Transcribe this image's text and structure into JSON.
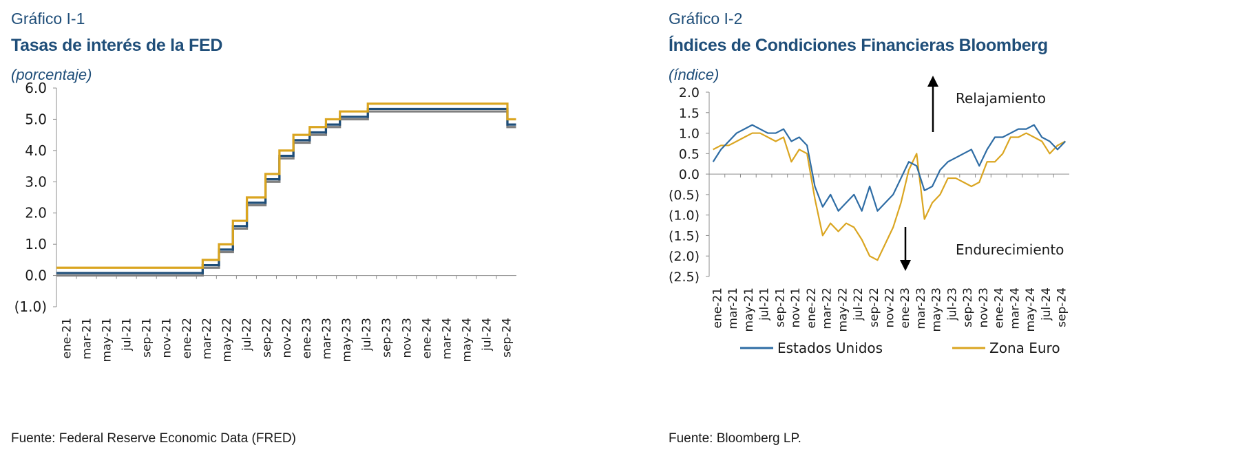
{
  "left": {
    "label": "Gráfico I-1",
    "title": "Tasas de interés de la FED",
    "unit": "(porcentaje)",
    "source": "Fuente: Federal Reserve Economic Data (FRED)"
  },
  "right": {
    "label": "Gráfico I-2",
    "title": "Índices de Condiciones Financieras Bloomberg",
    "unit": "(índice)",
    "source": "Fuente: Bloomberg LP.",
    "annotation_up": "Relajamiento",
    "annotation_down": "Endurecimiento",
    "legend": [
      "Estados Unidos",
      "Zona Euro"
    ]
  },
  "chart_data": [
    {
      "type": "line",
      "title": "Tasas de interés de la FED",
      "ylabel": "(porcentaje)",
      "ylim": [
        -1.0,
        6.0
      ],
      "yticks": [
        "(1.0)",
        "0.0",
        "1.0",
        "2.0",
        "3.0",
        "4.0",
        "5.0",
        "6.0"
      ],
      "xticks": [
        "ene-21",
        "mar-21",
        "may-21",
        "jul-21",
        "sep-21",
        "nov-21",
        "ene-22",
        "mar-22",
        "may-22",
        "jul-22",
        "sep-22",
        "nov-22",
        "ene-23",
        "mar-23",
        "may-23",
        "jul-23",
        "sep-23",
        "nov-23",
        "ene-24",
        "mar-24",
        "may-24",
        "jul-24",
        "sep-24"
      ],
      "legend": "none",
      "colors": {
        "upper": "#daa520",
        "effective": "#1f4e79",
        "lower": "#808080"
      },
      "x_dates": [
        "2021-01-01",
        "2022-03-17",
        "2022-05-05",
        "2022-06-16",
        "2022-07-28",
        "2022-09-22",
        "2022-11-03",
        "2022-12-15",
        "2023-02-02",
        "2023-03-23",
        "2023-05-04",
        "2023-07-27",
        "2024-09-19",
        "2024-10-15"
      ],
      "series": [
        {
          "values": [
            0.25,
            0.5,
            1.0,
            1.75,
            2.5,
            3.25,
            4.0,
            4.5,
            4.75,
            5.0,
            5.25,
            5.5,
            5.0,
            5.0
          ]
        },
        {
          "values": [
            0.08,
            0.33,
            0.83,
            1.58,
            2.33,
            3.08,
            3.83,
            4.33,
            4.58,
            4.83,
            5.08,
            5.33,
            4.83,
            4.83
          ]
        },
        {
          "values": [
            0.0,
            0.25,
            0.75,
            1.5,
            2.25,
            3.0,
            3.75,
            4.25,
            4.5,
            4.75,
            5.0,
            5.25,
            4.75,
            4.75
          ]
        }
      ]
    },
    {
      "type": "line",
      "title": "Índices de Condiciones Financieras Bloomberg",
      "ylabel": "(índice)",
      "ylim": [
        -2.5,
        2.0
      ],
      "yticks": [
        "(2.5)",
        "(2.0)",
        "(1.5)",
        "(1.0)",
        "(0.5)",
        "0.0",
        "0.5",
        "1.0",
        "1.5",
        "2.0"
      ],
      "xticks": [
        "ene-21",
        "mar-21",
        "may-21",
        "jul-21",
        "sep-21",
        "nov-21",
        "ene-22",
        "mar-22",
        "may-22",
        "jul-22",
        "sep-22",
        "nov-22",
        "ene-23",
        "mar-23",
        "may-23",
        "jul-23",
        "sep-23",
        "nov-23",
        "ene-24",
        "mar-24",
        "may-24",
        "jul-24",
        "sep-24"
      ],
      "legend": "bottom",
      "x_months": [
        "2021-01",
        "2021-02",
        "2021-03",
        "2021-04",
        "2021-05",
        "2021-06",
        "2021-07",
        "2021-08",
        "2021-09",
        "2021-10",
        "2021-11",
        "2021-12",
        "2022-01",
        "2022-02",
        "2022-03",
        "2022-04",
        "2022-05",
        "2022-06",
        "2022-07",
        "2022-08",
        "2022-09",
        "2022-10",
        "2022-11",
        "2022-12",
        "2023-01",
        "2023-02",
        "2023-03",
        "2023-04",
        "2023-05",
        "2023-06",
        "2023-07",
        "2023-08",
        "2023-09",
        "2023-10",
        "2023-11",
        "2023-12",
        "2024-01",
        "2024-02",
        "2024-03",
        "2024-04",
        "2024-05",
        "2024-06",
        "2024-07",
        "2024-08",
        "2024-09",
        "2024-10"
      ],
      "series": [
        {
          "name": "Estados Unidos",
          "color": "#2e6ca4",
          "values": [
            0.3,
            0.6,
            0.8,
            1.0,
            1.1,
            1.2,
            1.1,
            1.0,
            1.0,
            1.1,
            0.8,
            0.9,
            0.7,
            -0.3,
            -0.8,
            -0.5,
            -0.9,
            -0.7,
            -0.5,
            -0.9,
            -0.3,
            -0.9,
            -0.7,
            -0.5,
            -0.1,
            0.3,
            0.2,
            -0.4,
            -0.3,
            0.1,
            0.3,
            0.4,
            0.5,
            0.6,
            0.2,
            0.6,
            0.9,
            0.9,
            1.0,
            1.1,
            1.1,
            1.2,
            0.9,
            0.8,
            0.6,
            0.8
          ]
        },
        {
          "name": "Zona Euro",
          "color": "#daa520",
          "values": [
            0.6,
            0.7,
            0.7,
            0.8,
            0.9,
            1.0,
            1.0,
            0.9,
            0.8,
            0.9,
            0.3,
            0.6,
            0.5,
            -0.6,
            -1.5,
            -1.2,
            -1.4,
            -1.2,
            -1.3,
            -1.6,
            -2.0,
            -2.1,
            -1.7,
            -1.3,
            -0.7,
            0.1,
            0.5,
            -1.1,
            -0.7,
            -0.5,
            -0.1,
            -0.1,
            -0.2,
            -0.3,
            -0.2,
            0.3,
            0.3,
            0.5,
            0.9,
            0.9,
            1.0,
            0.9,
            0.8,
            0.5,
            0.7,
            0.8
          ]
        }
      ]
    }
  ]
}
